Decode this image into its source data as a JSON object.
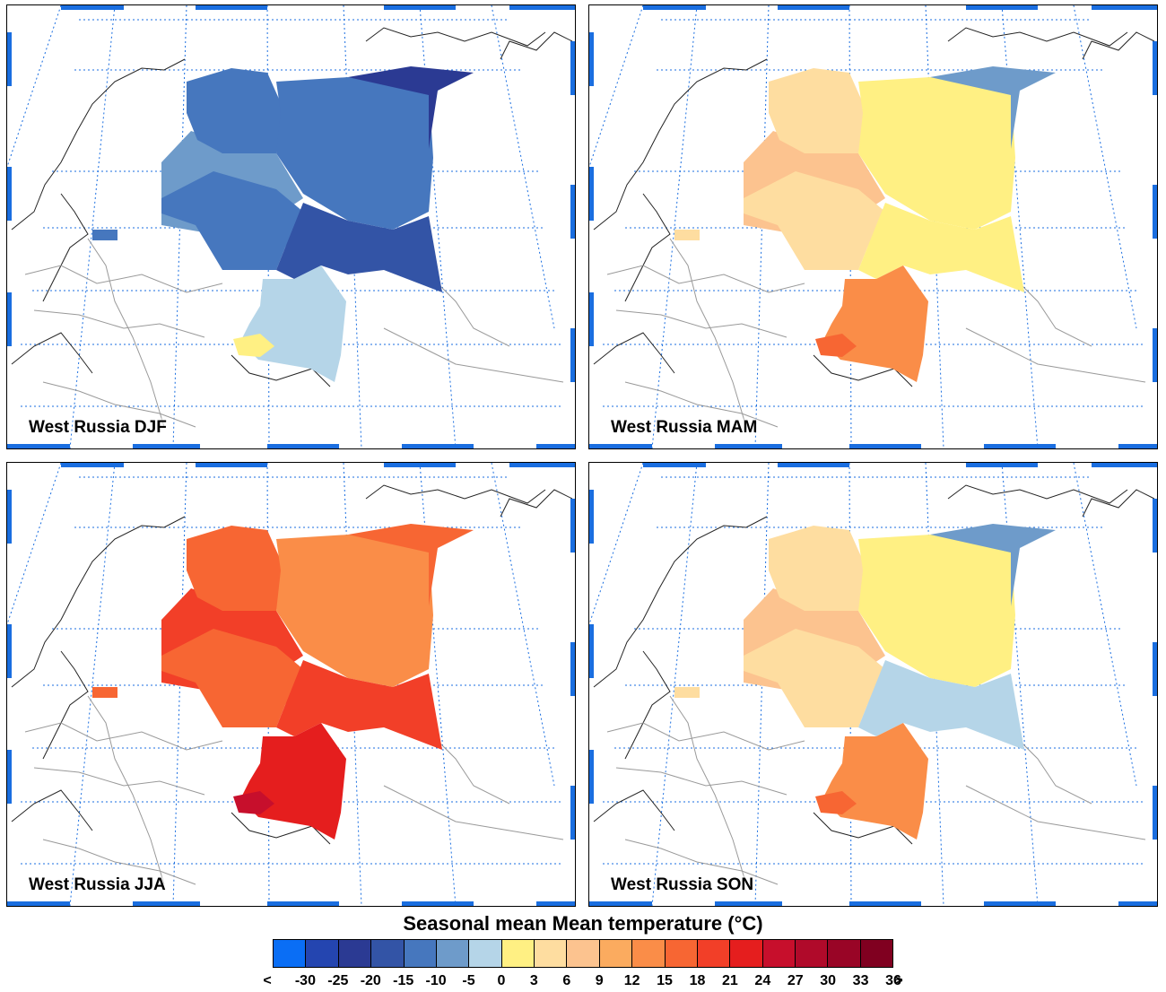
{
  "panels": [
    {
      "label": "West Russia DJF",
      "zones": [
        "-10",
        "-15",
        "-15",
        "-15",
        "-20",
        "-25",
        "-5",
        "0"
      ]
    },
    {
      "label": "West Russia MAM",
      "zones": [
        "6",
        "3",
        "3",
        "0",
        "0",
        "-10",
        "12",
        "15"
      ]
    },
    {
      "label": "West Russia JJA",
      "zones": [
        "18",
        "15",
        "15",
        "12",
        "18",
        "15",
        "21",
        "24"
      ]
    },
    {
      "label": "West Russia SON",
      "zones": [
        "6",
        "3",
        "3",
        "0",
        "-5",
        "-10",
        "12",
        "15"
      ]
    }
  ],
  "legend": {
    "title": "Seasonal mean Mean temperature (°C)",
    "labels": [
      "<",
      "-30",
      "-25",
      "-20",
      "-15",
      "-10",
      "-5",
      "0",
      "3",
      "6",
      "9",
      "12",
      "15",
      "18",
      "21",
      "24",
      "27",
      "30",
      "33",
      "36",
      ">"
    ],
    "colors": [
      "#0a6ef5",
      "#2445b0",
      "#2b3a93",
      "#3354a6",
      "#4677be",
      "#6e9bca",
      "#b5d5e8",
      "#fff083",
      "#fedda0",
      "#fcc38f",
      "#fbab5f",
      "#fa8d48",
      "#f76633",
      "#f23f28",
      "#e51e1e",
      "#c70f2c",
      "#b00a2a",
      "#990526",
      "#800020"
    ],
    "bins": [
      "<-30",
      "-30",
      "-25",
      "-20",
      "-15",
      "-10",
      "-5",
      "0",
      "3",
      "6",
      "9",
      "12",
      "15",
      "18",
      "21",
      "24",
      "27",
      "30",
      "33"
    ]
  }
}
